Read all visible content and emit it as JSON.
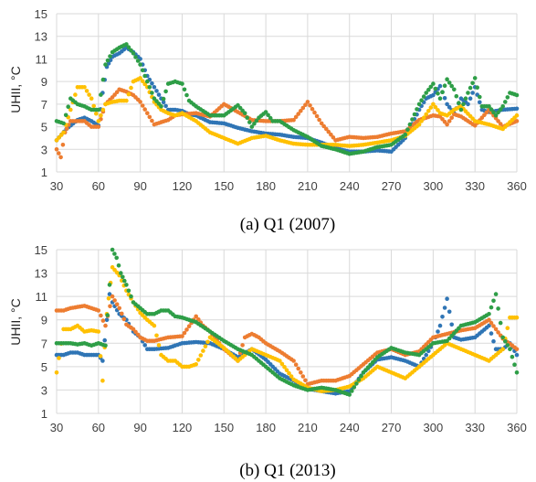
{
  "chart_data": [
    {
      "type": "scatter",
      "caption": "(a) Q1 (2007)",
      "ylabel": "UHII, °C",
      "xlabel": "",
      "xlim": [
        30,
        360
      ],
      "ylim": [
        1,
        15
      ],
      "xticks": [
        30,
        60,
        90,
        120,
        150,
        180,
        210,
        240,
        270,
        300,
        330,
        360
      ],
      "yticks": [
        1,
        3,
        5,
        7,
        9,
        11,
        13,
        15
      ],
      "grid": true,
      "series": [
        {
          "color": "#2f75b5",
          "x": [
            30,
            37,
            45,
            50,
            55,
            60,
            63,
            66,
            70,
            75,
            80,
            85,
            90,
            95,
            100,
            105,
            110,
            115,
            120,
            125,
            130,
            140,
            150,
            160,
            170,
            180,
            190,
            200,
            210,
            220,
            230,
            240,
            250,
            260,
            270,
            280,
            290,
            295,
            300,
            305,
            310,
            315,
            320,
            325,
            330,
            335,
            340,
            350,
            360
          ],
          "y": [
            3.8,
            4.8,
            5.6,
            5.8,
            5.5,
            5.1,
            8.0,
            10.3,
            11.2,
            11.5,
            12.0,
            11.6,
            11.0,
            9.5,
            8.5,
            7.5,
            6.5,
            6.5,
            6.4,
            6.1,
            6.0,
            5.4,
            5.3,
            4.9,
            4.6,
            4.4,
            4.3,
            4.1,
            4.0,
            3.6,
            3.1,
            2.8,
            2.8,
            2.9,
            2.8,
            4.0,
            6.5,
            7.5,
            7.8,
            8.6,
            7.0,
            6.2,
            7.5,
            7.0,
            8.5,
            6.5,
            6.3,
            6.5,
            6.6
          ]
        },
        {
          "color": "#ed7d31",
          "x": [
            30,
            33,
            36,
            40,
            45,
            50,
            55,
            60,
            65,
            70,
            75,
            80,
            85,
            90,
            95,
            100,
            105,
            110,
            115,
            120,
            130,
            140,
            150,
            160,
            170,
            180,
            190,
            200,
            210,
            220,
            230,
            240,
            250,
            260,
            270,
            280,
            290,
            300,
            305,
            310,
            315,
            320,
            330,
            340,
            350,
            360
          ],
          "y": [
            3.0,
            2.3,
            4.5,
            5.5,
            5.5,
            5.5,
            5.0,
            5.0,
            7.0,
            7.6,
            8.3,
            8.1,
            7.8,
            7.2,
            6.2,
            5.2,
            5.4,
            5.6,
            6.0,
            6.1,
            6.2,
            5.9,
            7.0,
            6.3,
            5.6,
            5.5,
            5.5,
            5.6,
            7.2,
            5.3,
            3.8,
            4.1,
            4.0,
            4.1,
            4.4,
            4.6,
            5.6,
            6.0,
            5.9,
            5.2,
            6.1,
            5.9,
            5.1,
            6.5,
            5.0,
            5.5
          ]
        },
        {
          "color": "#ffc000",
          "x": [
            30,
            35,
            40,
            45,
            50,
            55,
            60,
            65,
            70,
            75,
            80,
            85,
            90,
            95,
            100,
            105,
            110,
            115,
            120,
            130,
            140,
            150,
            160,
            170,
            180,
            190,
            200,
            210,
            220,
            230,
            240,
            250,
            260,
            270,
            280,
            290,
            300,
            305,
            310,
            315,
            320,
            330,
            340,
            350,
            360
          ],
          "y": [
            3.8,
            4.5,
            6.5,
            8.5,
            8.5,
            7.5,
            5.5,
            7.0,
            7.2,
            7.3,
            7.3,
            9.0,
            9.3,
            8.5,
            7.2,
            6.5,
            6.2,
            6.0,
            6.2,
            5.5,
            4.5,
            4.0,
            3.5,
            4.0,
            4.2,
            3.8,
            3.5,
            3.4,
            3.4,
            3.4,
            3.3,
            3.4,
            3.6,
            3.8,
            4.2,
            5.2,
            7.0,
            6.2,
            6.0,
            6.5,
            6.8,
            5.5,
            5.2,
            4.8,
            6.0
          ]
        },
        {
          "color": "#2e9e47",
          "x": [
            30,
            35,
            40,
            45,
            50,
            55,
            60,
            65,
            70,
            75,
            80,
            85,
            90,
            95,
            100,
            105,
            110,
            115,
            120,
            125,
            130,
            140,
            150,
            160,
            165,
            170,
            175,
            180,
            185,
            190,
            200,
            210,
            220,
            230,
            240,
            250,
            260,
            270,
            280,
            290,
            295,
            300,
            305,
            310,
            315,
            320,
            325,
            330,
            335,
            340,
            345,
            350,
            355,
            360
          ],
          "y": [
            5.5,
            5.3,
            7.5,
            7.0,
            6.8,
            6.5,
            6.5,
            10.5,
            11.6,
            12.0,
            12.3,
            11.5,
            10.5,
            9.0,
            7.5,
            6.8,
            8.8,
            9.0,
            8.8,
            7.3,
            6.8,
            6.0,
            6.0,
            6.9,
            6.2,
            5.0,
            5.8,
            6.3,
            5.5,
            5.5,
            4.7,
            4.1,
            3.3,
            3.0,
            2.6,
            2.8,
            3.2,
            3.4,
            4.3,
            7.0,
            8.0,
            8.8,
            7.5,
            9.2,
            8.3,
            6.5,
            8.0,
            9.3,
            6.8,
            6.8,
            6.0,
            6.8,
            8.0,
            7.8
          ]
        }
      ]
    },
    {
      "type": "scatter",
      "caption": "(b) Q1 (2013)",
      "ylabel": "UHII, °C",
      "xlabel": "",
      "xlim": [
        30,
        360
      ],
      "ylim": [
        1,
        15
      ],
      "xticks": [
        30,
        60,
        90,
        120,
        150,
        180,
        210,
        240,
        270,
        300,
        330,
        360
      ],
      "yticks": [
        1,
        3,
        5,
        7,
        9,
        11,
        13,
        15
      ],
      "grid": true,
      "series": [
        {
          "color": "#2f75b5",
          "x": [
            30,
            35,
            40,
            45,
            50,
            55,
            60,
            63,
            66,
            68,
            70,
            75,
            80,
            85,
            90,
            95,
            100,
            110,
            120,
            130,
            140,
            150,
            160,
            170,
            180,
            190,
            200,
            210,
            220,
            230,
            240,
            250,
            260,
            270,
            280,
            290,
            300,
            305,
            310,
            315,
            320,
            330,
            340,
            345,
            350,
            355,
            360
          ],
          "y": [
            6.0,
            6.0,
            6.2,
            6.2,
            6.0,
            6.0,
            6.0,
            5.5,
            9.0,
            11.2,
            10.5,
            9.5,
            9.0,
            8.0,
            7.5,
            6.5,
            6.5,
            6.6,
            7.0,
            7.1,
            7.0,
            6.5,
            5.8,
            6.5,
            5.6,
            4.4,
            3.8,
            3.1,
            2.9,
            2.7,
            2.9,
            4.5,
            5.6,
            5.8,
            5.5,
            5.0,
            7.0,
            8.5,
            10.8,
            7.5,
            7.3,
            7.5,
            8.5,
            6.5,
            6.5,
            7.0,
            6.0
          ]
        },
        {
          "color": "#ed7d31",
          "x": [
            30,
            35,
            40,
            45,
            50,
            55,
            60,
            65,
            70,
            75,
            80,
            85,
            90,
            95,
            100,
            110,
            120,
            130,
            135,
            140,
            150,
            160,
            165,
            170,
            175,
            180,
            190,
            200,
            210,
            220,
            230,
            240,
            250,
            260,
            270,
            280,
            290,
            300,
            310,
            320,
            330,
            340,
            350,
            360
          ],
          "y": [
            9.8,
            9.8,
            10.0,
            10.1,
            10.2,
            10.0,
            9.8,
            8.5,
            11.0,
            10.0,
            8.6,
            8.2,
            7.5,
            7.2,
            7.2,
            7.5,
            7.6,
            9.3,
            8.5,
            8.0,
            6.5,
            5.5,
            7.5,
            7.8,
            7.5,
            7.0,
            6.3,
            5.5,
            3.5,
            3.8,
            3.8,
            4.2,
            5.2,
            6.2,
            6.5,
            6.0,
            6.3,
            7.5,
            7.8,
            8.1,
            8.3,
            9.0,
            7.4,
            6.5
          ]
        },
        {
          "color": "#ffc000",
          "x": [
            30,
            35,
            40,
            45,
            50,
            55,
            60,
            63,
            66,
            70,
            75,
            80,
            85,
            90,
            95,
            100,
            105,
            110,
            115,
            120,
            125,
            130,
            140,
            150,
            160,
            170,
            180,
            190,
            200,
            210,
            220,
            230,
            240,
            250,
            260,
            270,
            280,
            290,
            300,
            310,
            320,
            330,
            340,
            350,
            355,
            360
          ],
          "y": [
            4.5,
            8.2,
            8.2,
            8.5,
            8.0,
            8.1,
            8.0,
            3.8,
            9.5,
            13.5,
            12.8,
            11.5,
            10.5,
            9.6,
            9.0,
            8.5,
            6.0,
            5.5,
            5.5,
            5.0,
            5.0,
            5.2,
            7.5,
            6.6,
            5.5,
            6.5,
            6.0,
            5.5,
            3.9,
            3.2,
            2.9,
            3.0,
            3.3,
            4.0,
            5.0,
            4.5,
            4.0,
            5.0,
            6.0,
            7.0,
            6.5,
            6.0,
            5.5,
            6.5,
            9.2,
            9.2
          ]
        },
        {
          "color": "#2e9e47",
          "x": [
            30,
            35,
            40,
            45,
            50,
            55,
            60,
            65,
            68,
            70,
            73,
            76,
            80,
            85,
            90,
            95,
            100,
            105,
            110,
            115,
            120,
            130,
            140,
            150,
            160,
            170,
            180,
            190,
            200,
            210,
            220,
            230,
            240,
            250,
            260,
            270,
            280,
            290,
            300,
            310,
            320,
            330,
            340,
            345,
            350,
            355,
            360
          ],
          "y": [
            7.0,
            7.0,
            7.0,
            6.9,
            7.0,
            6.8,
            7.0,
            6.8,
            12.0,
            15.0,
            14.3,
            13.0,
            12.0,
            10.5,
            10.0,
            9.5,
            9.5,
            9.8,
            9.8,
            9.3,
            9.2,
            8.8,
            8.0,
            7.2,
            6.5,
            6.0,
            5.0,
            4.0,
            3.4,
            3.0,
            3.2,
            3.0,
            2.6,
            4.5,
            5.8,
            6.6,
            6.2,
            6.0,
            7.0,
            7.2,
            8.5,
            8.8,
            9.5,
            11.2,
            7.5,
            6.5,
            4.5
          ]
        }
      ]
    }
  ]
}
